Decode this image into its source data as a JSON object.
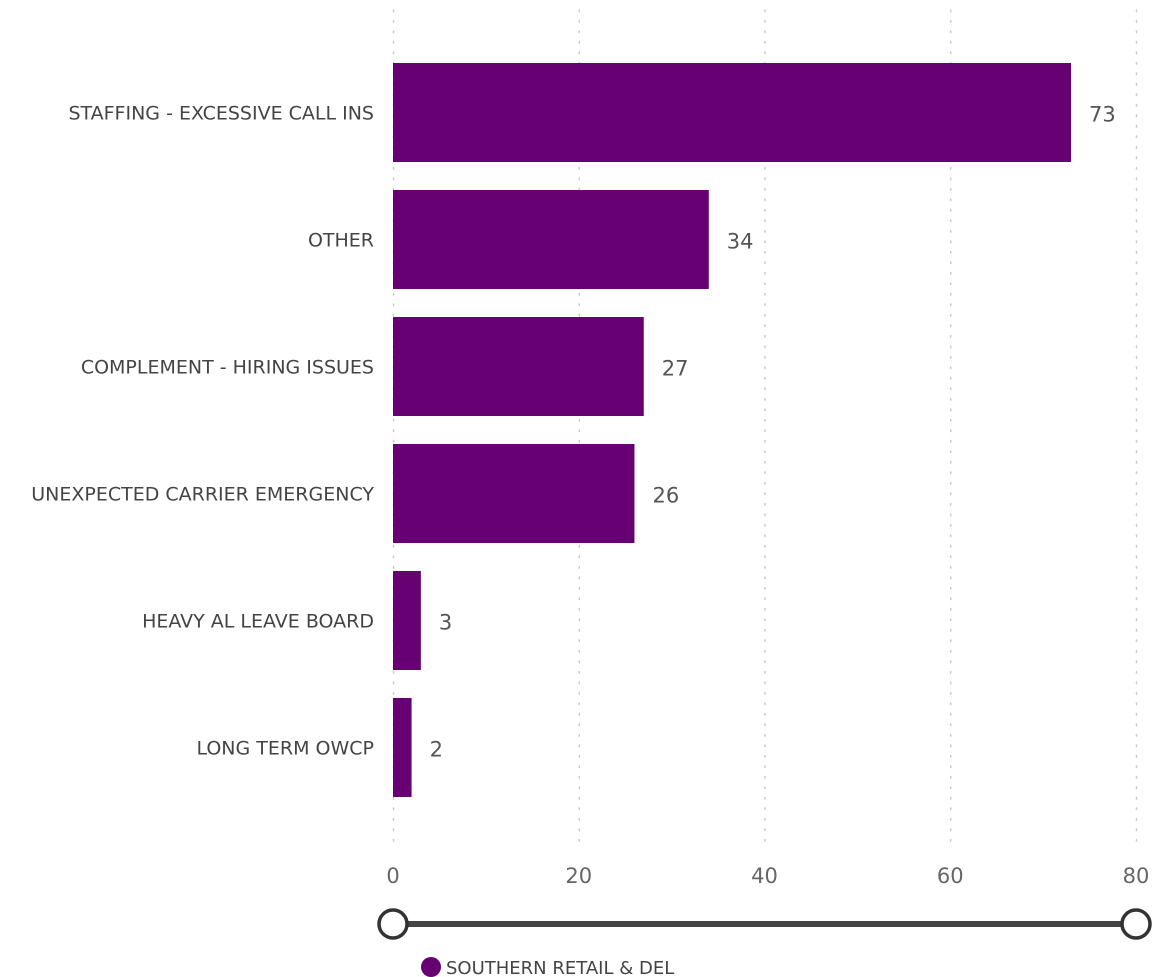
{
  "chart_data": {
    "type": "bar",
    "orientation": "horizontal",
    "categories": [
      "STAFFING - EXCESSIVE CALL INS",
      "OTHER",
      "COMPLEMENT - HIRING ISSUES",
      "UNEXPECTED CARRIER EMERGENCY",
      "HEAVY AL LEAVE BOARD",
      "LONG TERM OWCP"
    ],
    "series": [
      {
        "name": "SOUTHERN RETAIL & DEL",
        "color": "#660073",
        "values": [
          73,
          34,
          27,
          26,
          3,
          2
        ]
      }
    ],
    "value_labels": [
      "73",
      "34",
      "27",
      "26",
      "3",
      "2"
    ],
    "xlim": [
      0,
      80
    ],
    "xticks": [
      0,
      20,
      40,
      60,
      80
    ],
    "xtick_labels": [
      "0",
      "20",
      "40",
      "60",
      "80"
    ],
    "gridlines": "vertical-dotted",
    "legend_position": "bottom-left",
    "title": "",
    "xlabel": "",
    "ylabel": ""
  },
  "zoom_slider": {
    "range": [
      0,
      80
    ]
  },
  "colors": {
    "bar": "#660073",
    "grid": "#c8c8c8",
    "slider_track": "#444444",
    "slider_handle_border": "#333333"
  }
}
